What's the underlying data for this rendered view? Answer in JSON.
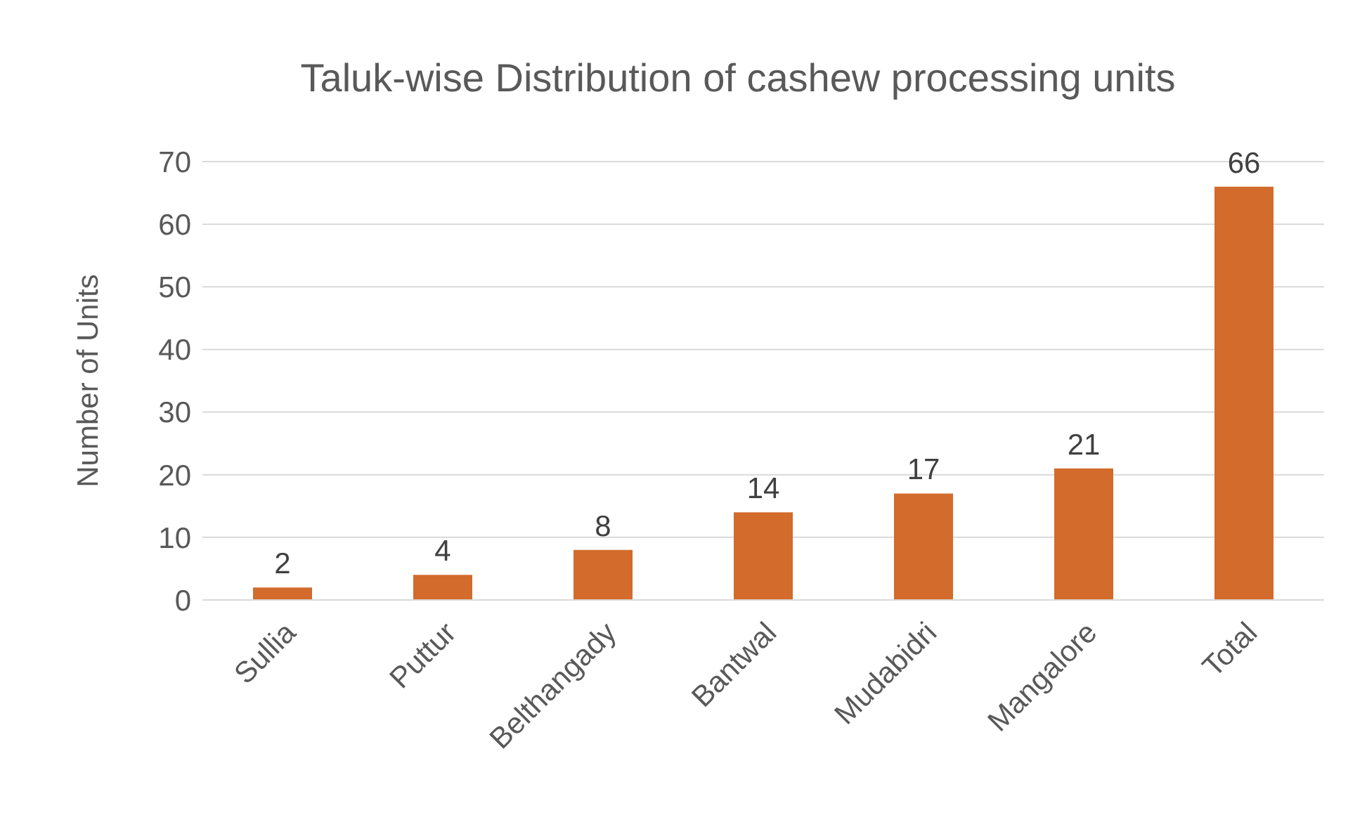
{
  "chart_data": {
    "type": "bar",
    "title": "Taluk-wise Distribution of cashew processing units",
    "ylabel": "Number of Units",
    "categories": [
      "Sullia",
      "Puttur",
      "Belthangady",
      "Bantwal",
      "Mudabidri",
      "Mangalore",
      "Total"
    ],
    "values": [
      2,
      4,
      8,
      14,
      17,
      21,
      66
    ],
    "color": "#d26b2b",
    "ylim": [
      0,
      70
    ],
    "yticks": [
      0,
      10,
      20,
      30,
      40,
      50,
      60,
      70
    ],
    "grid": "y",
    "data_labels": true,
    "legend": false
  }
}
